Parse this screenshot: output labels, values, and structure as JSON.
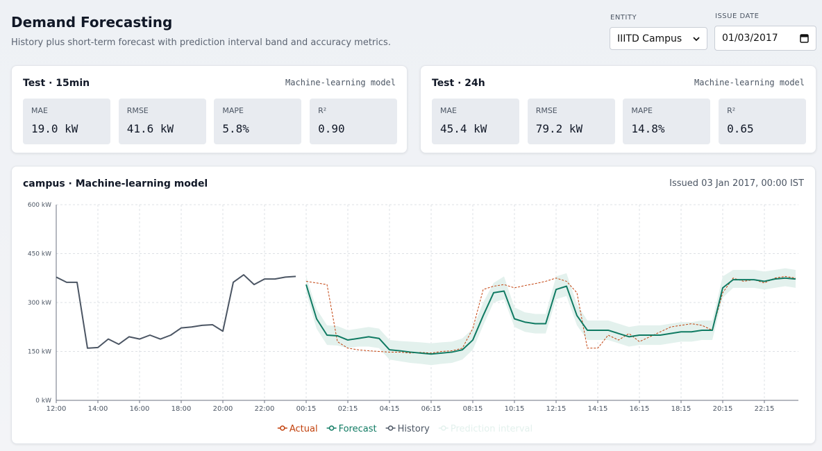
{
  "header": {
    "title": "Demand Forecasting",
    "subtitle": "History plus short-term forecast with prediction interval band and accuracy metrics."
  },
  "controls": {
    "entity": {
      "label": "ENTITY",
      "value": "IIITD Campus"
    },
    "issue_date": {
      "label": "ISSUE DATE",
      "value": "01/03/2017"
    }
  },
  "metric_cards": [
    {
      "title": "Test · 15min",
      "model": "Machine-learning model",
      "metrics": [
        {
          "name": "MAE",
          "value": "19.0 kW"
        },
        {
          "name": "RMSE",
          "value": "41.6 kW"
        },
        {
          "name": "MAPE",
          "value": "5.8%"
        },
        {
          "name": "R²",
          "value": "0.90"
        }
      ]
    },
    {
      "title": "Test · 24h",
      "model": "Machine-learning model",
      "metrics": [
        {
          "name": "MAE",
          "value": "45.4 kW"
        },
        {
          "name": "RMSE",
          "value": "79.2 kW"
        },
        {
          "name": "MAPE",
          "value": "14.8%"
        },
        {
          "name": "R²",
          "value": "0.65"
        }
      ]
    }
  ],
  "chart_card": {
    "title": "campus · Machine-learning model",
    "issued": "Issued 03 Jan 2017, 00:00 IST"
  },
  "chart_data": {
    "type": "line",
    "categories": [
      "12:00",
      null,
      null,
      null,
      "14:00",
      null,
      null,
      null,
      "16:00",
      null,
      null,
      null,
      "18:00",
      null,
      null,
      null,
      "20:00",
      null,
      null,
      null,
      "22:00",
      null,
      null,
      null,
      "00:15",
      null,
      null,
      null,
      "02:15",
      null,
      null,
      null,
      "04:15",
      null,
      null,
      null,
      "06:15",
      null,
      null,
      null,
      "08:15",
      null,
      null,
      null,
      "10:15",
      null,
      null,
      null,
      "12:15",
      null,
      null,
      null,
      "14:15",
      null,
      null,
      null,
      "16:15",
      null,
      null,
      null,
      "18:15",
      null,
      null,
      null,
      "20:15",
      null,
      null,
      null,
      "22:15",
      null,
      null,
      null
    ],
    "ylim": [
      0,
      600
    ],
    "yticks": [
      {
        "value": 0,
        "label": "0 kW"
      },
      {
        "value": 150,
        "label": "150 kW"
      },
      {
        "value": 300,
        "label": "300 kW"
      },
      {
        "value": 450,
        "label": "450 kW"
      },
      {
        "value": 600,
        "label": "600 kW"
      }
    ],
    "grid": true,
    "series": [
      {
        "name": "Actual",
        "color": "#c2410c",
        "dashed": true,
        "values": [
          null,
          null,
          null,
          null,
          null,
          null,
          null,
          null,
          null,
          null,
          null,
          null,
          null,
          null,
          null,
          null,
          null,
          null,
          null,
          null,
          null,
          null,
          null,
          null,
          365,
          360,
          355,
          180,
          160,
          155,
          152,
          150,
          148,
          148,
          145,
          147,
          145,
          150,
          152,
          160,
          220,
          340,
          350,
          355,
          345,
          352,
          358,
          365,
          375,
          365,
          330,
          160,
          160,
          200,
          185,
          205,
          180,
          195,
          210,
          225,
          230,
          235,
          230,
          215,
          330,
          375,
          365,
          370,
          360,
          375,
          380,
          375
        ]
      },
      {
        "name": "Forecast",
        "color": "#0f7a62",
        "values": [
          null,
          null,
          null,
          null,
          null,
          null,
          null,
          null,
          null,
          null,
          null,
          null,
          null,
          null,
          null,
          null,
          null,
          null,
          null,
          null,
          null,
          null,
          null,
          null,
          355,
          250,
          200,
          198,
          185,
          190,
          195,
          190,
          155,
          152,
          148,
          145,
          142,
          145,
          148,
          155,
          185,
          260,
          330,
          335,
          250,
          240,
          235,
          235,
          340,
          350,
          260,
          215,
          215,
          215,
          205,
          195,
          200,
          200,
          200,
          205,
          210,
          210,
          215,
          215,
          345,
          370,
          370,
          370,
          365,
          372,
          375,
          372
        ]
      },
      {
        "name": "History",
        "color": "#4b5563",
        "values": [
          378,
          362,
          362,
          160,
          162,
          188,
          172,
          195,
          188,
          200,
          188,
          200,
          222,
          225,
          230,
          232,
          212,
          362,
          385,
          355,
          372,
          372,
          378,
          380,
          null,
          null,
          null,
          null,
          null,
          null,
          null,
          null,
          null,
          null,
          null,
          null,
          null,
          null,
          null,
          null,
          null,
          null,
          null,
          null,
          null,
          null,
          null,
          null,
          null,
          null,
          null,
          null,
          null,
          null,
          null,
          null,
          null,
          null,
          null,
          null,
          null,
          null,
          null,
          null,
          null,
          null,
          null,
          null,
          null,
          null,
          null,
          null
        ]
      },
      {
        "name": "Prediction interval",
        "color": "#e3f1ed",
        "lower": [
          null,
          null,
          null,
          null,
          null,
          null,
          null,
          null,
          null,
          null,
          null,
          null,
          null,
          null,
          null,
          null,
          null,
          null,
          null,
          null,
          null,
          null,
          null,
          null,
          330,
          220,
          170,
          168,
          160,
          165,
          165,
          160,
          125,
          120,
          115,
          112,
          108,
          112,
          115,
          125,
          155,
          230,
          300,
          310,
          225,
          210,
          205,
          205,
          310,
          320,
          230,
          185,
          185,
          185,
          175,
          165,
          170,
          170,
          170,
          175,
          180,
          180,
          185,
          185,
          315,
          345,
          345,
          345,
          340,
          345,
          350,
          345
        ],
        "upper": [
          null,
          null,
          null,
          null,
          null,
          null,
          null,
          null,
          null,
          null,
          null,
          null,
          null,
          null,
          null,
          null,
          null,
          null,
          null,
          null,
          null,
          null,
          null,
          null,
          380,
          280,
          230,
          228,
          215,
          220,
          225,
          220,
          185,
          182,
          180,
          178,
          175,
          178,
          180,
          190,
          220,
          300,
          360,
          380,
          285,
          270,
          265,
          265,
          380,
          390,
          295,
          245,
          245,
          245,
          235,
          225,
          230,
          230,
          230,
          235,
          240,
          240,
          245,
          245,
          380,
          400,
          400,
          400,
          395,
          400,
          405,
          400
        ]
      }
    ]
  }
}
